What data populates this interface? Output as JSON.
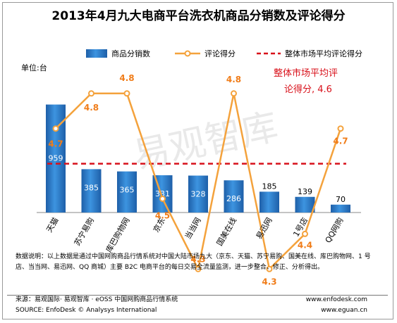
{
  "chart_data": {
    "type": "bar",
    "title": "2013年4月九大电商平台洗衣机商品分销数及评论得分",
    "unit_label": "单位:台",
    "categories": [
      "天猫",
      "苏宁易购",
      "库巴购物网",
      "京东",
      "当当网",
      "国美在线",
      "易迅网",
      "1号店",
      "QQ网购"
    ],
    "series": [
      {
        "name": "商品分销数",
        "type": "bar",
        "values": [
          959,
          385,
          365,
          331,
          328,
          286,
          185,
          139,
          70
        ],
        "color": "#2e7fd0"
      },
      {
        "name": "评论得分",
        "type": "line",
        "values": [
          4.7,
          4.8,
          4.8,
          4.5,
          4.3,
          4.8,
          4.3,
          4.4,
          4.7
        ],
        "color": "#f4a23c",
        "label_color": "#f07d1a"
      },
      {
        "name": "整体市场平均评论得分",
        "type": "reference-line",
        "value": 4.6,
        "color": "#d8101a"
      }
    ],
    "annotation": {
      "line1": "整体市场平均评",
      "line2": "论得分, 4.6"
    },
    "ylim_bar": [
      0,
      1000
    ],
    "ylim_score": [
      4.0,
      5.0
    ],
    "legend_position": "top"
  },
  "watermark": "易观智库",
  "notes": {
    "text": "数据说明：以上数据是通过中国网购商品行情系统对中国大陆市场九大（京东、天猫、苏宁易购、国美在线、库巴购物网、1 号店、当当网、易迅网、QQ 商城）主要 B2C 电商平台的每日交易全流量监测，进一步整合、修正、分析得出。"
  },
  "source": {
    "line1": "来源：易观国际· 易观智库 · eOSS 中国网购商品行情系统",
    "line2": "SOURCE: EnfoDesk © Analysys International",
    "url1": "www.enfodesk.com",
    "url2": "www.eguan.cn"
  }
}
